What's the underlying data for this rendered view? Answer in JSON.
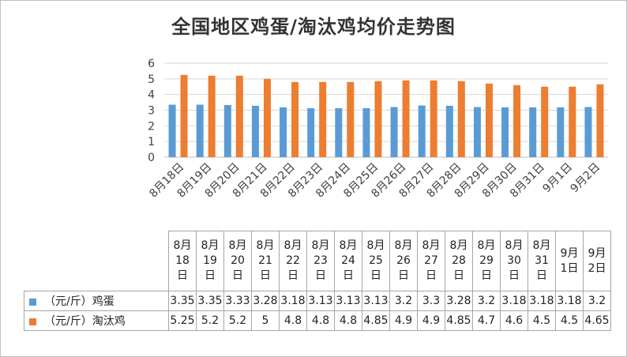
{
  "chart_data": {
    "type": "bar",
    "title": "全国地区鸡蛋/淘汰鸡均价走势图",
    "categories": [
      "8月18日",
      "8月19日",
      "8月20日",
      "8月21日",
      "8月22日",
      "8月23日",
      "8月24日",
      "8月25日",
      "8月26日",
      "8月27日",
      "8月28日",
      "8月29日",
      "8月30日",
      "8月31日",
      "9月1日",
      "9月2日"
    ],
    "table_headers": [
      [
        "8月",
        "18",
        "日"
      ],
      [
        "8月",
        "19",
        "日"
      ],
      [
        "8月",
        "20",
        "日"
      ],
      [
        "8月",
        "21",
        "日"
      ],
      [
        "8月",
        "22",
        "日"
      ],
      [
        "8月",
        "23",
        "日"
      ],
      [
        "8月",
        "24",
        "日"
      ],
      [
        "8月",
        "25",
        "日"
      ],
      [
        "8月",
        "26",
        "日"
      ],
      [
        "8月",
        "27",
        "日"
      ],
      [
        "8月",
        "28",
        "日"
      ],
      [
        "8月",
        "29",
        "日"
      ],
      [
        "8月",
        "30",
        "日"
      ],
      [
        "8月",
        "31",
        "日"
      ],
      [
        "9月",
        "1日"
      ],
      [
        "9月",
        "2日"
      ]
    ],
    "series": [
      {
        "name": "（元/斤）鸡蛋",
        "color": "#5b9bd5",
        "values": [
          3.35,
          3.35,
          3.33,
          3.28,
          3.18,
          3.13,
          3.13,
          3.13,
          3.2,
          3.3,
          3.28,
          3.2,
          3.18,
          3.18,
          3.18,
          3.2
        ],
        "labels": [
          "3.35",
          "3.35",
          "3.33",
          "3.28",
          "3.18",
          "3.13",
          "3.13",
          "3.13",
          "3.2",
          "3.3",
          "3.28",
          "3.2",
          "3.18",
          "3.18",
          "3.18",
          "3.2"
        ]
      },
      {
        "name": "（元/斤）淘汰鸡",
        "color": "#ed7d31",
        "values": [
          5.25,
          5.2,
          5.2,
          5,
          4.8,
          4.8,
          4.8,
          4.85,
          4.9,
          4.9,
          4.85,
          4.7,
          4.6,
          4.5,
          4.5,
          4.65
        ],
        "labels": [
          "5.25",
          "5.2",
          "5.2",
          "5",
          "4.8",
          "4.8",
          "4.8",
          "4.85",
          "4.9",
          "4.9",
          "4.85",
          "4.7",
          "4.6",
          "4.5",
          "4.5",
          "4.65"
        ]
      }
    ],
    "ylim": [
      0,
      6
    ],
    "yticks": [
      "0",
      "1",
      "2",
      "3",
      "4",
      "5",
      "6"
    ],
    "grid": true,
    "legend": "data-table"
  }
}
